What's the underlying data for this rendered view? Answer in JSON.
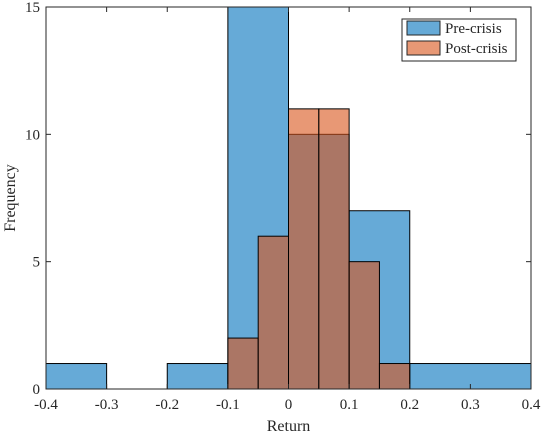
{
  "chart_data": {
    "type": "bar",
    "title": "",
    "xlabel": "Return",
    "ylabel": "Frequency",
    "xlim": [
      -0.4,
      0.4
    ],
    "ylim": [
      0,
      15
    ],
    "xticks": [
      "-0.4",
      "-0.3",
      "-0.2",
      "-0.1",
      "0",
      "0.1",
      "0.2",
      "0.3",
      "0.4"
    ],
    "yticks": [
      "0",
      "5",
      "10",
      "15"
    ],
    "grid": false,
    "legend_position": "top-right",
    "series": [
      {
        "name": "Pre-crisis",
        "color": "#0072BD",
        "bins": [
          {
            "x0": -0.4,
            "x1": -0.3,
            "count": 1
          },
          {
            "x0": -0.2,
            "x1": -0.1,
            "count": 1
          },
          {
            "x0": -0.1,
            "x1": 0.0,
            "count": 15
          },
          {
            "x0": 0.0,
            "x1": 0.1,
            "count": 10
          },
          {
            "x0": 0.1,
            "x1": 0.2,
            "count": 7
          },
          {
            "x0": 0.2,
            "x1": 0.4,
            "count": 1
          }
        ]
      },
      {
        "name": "Post-crisis",
        "color": "#D95319",
        "bins": [
          {
            "x0": -0.1,
            "x1": -0.05,
            "count": 2
          },
          {
            "x0": -0.05,
            "x1": 0.0,
            "count": 6
          },
          {
            "x0": 0.0,
            "x1": 0.05,
            "count": 11
          },
          {
            "x0": 0.05,
            "x1": 0.1,
            "count": 11
          },
          {
            "x0": 0.1,
            "x1": 0.15,
            "count": 5
          },
          {
            "x0": 0.15,
            "x1": 0.2,
            "count": 1
          }
        ]
      }
    ]
  }
}
